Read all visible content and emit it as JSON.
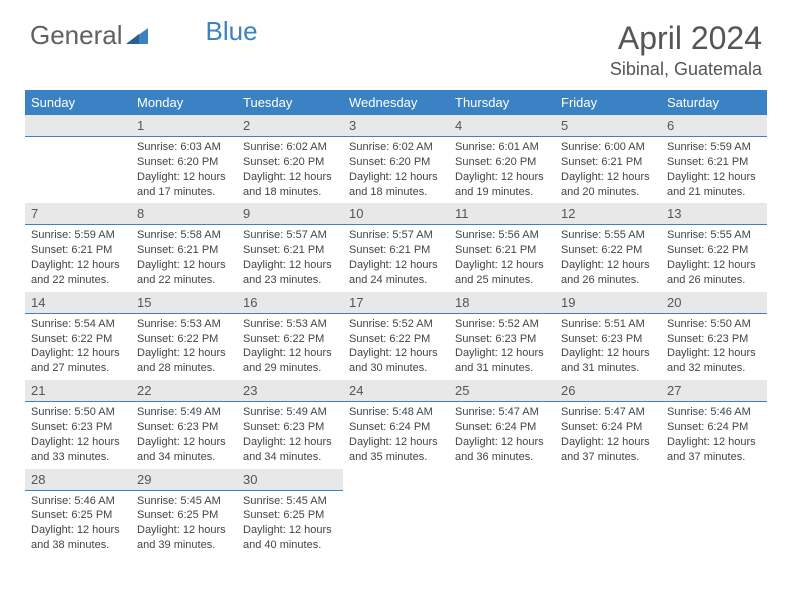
{
  "logo": {
    "part1": "General",
    "part2": "Blue"
  },
  "title": "April 2024",
  "location": "Sibinal, Guatemala",
  "colors": {
    "header_bg": "#3b82c4",
    "header_text": "#ffffff",
    "daynum_bg": "#e8e8e8",
    "daynum_border": "#3b82c4",
    "body_text": "#444444",
    "title_text": "#555555"
  },
  "weekdays": [
    "Sunday",
    "Monday",
    "Tuesday",
    "Wednesday",
    "Thursday",
    "Friday",
    "Saturday"
  ],
  "weeks": [
    [
      null,
      {
        "n": "1",
        "sr": "6:03 AM",
        "ss": "6:20 PM",
        "dl": "12 hours and 17 minutes."
      },
      {
        "n": "2",
        "sr": "6:02 AM",
        "ss": "6:20 PM",
        "dl": "12 hours and 18 minutes."
      },
      {
        "n": "3",
        "sr": "6:02 AM",
        "ss": "6:20 PM",
        "dl": "12 hours and 18 minutes."
      },
      {
        "n": "4",
        "sr": "6:01 AM",
        "ss": "6:20 PM",
        "dl": "12 hours and 19 minutes."
      },
      {
        "n": "5",
        "sr": "6:00 AM",
        "ss": "6:21 PM",
        "dl": "12 hours and 20 minutes."
      },
      {
        "n": "6",
        "sr": "5:59 AM",
        "ss": "6:21 PM",
        "dl": "12 hours and 21 minutes."
      }
    ],
    [
      {
        "n": "7",
        "sr": "5:59 AM",
        "ss": "6:21 PM",
        "dl": "12 hours and 22 minutes."
      },
      {
        "n": "8",
        "sr": "5:58 AM",
        "ss": "6:21 PM",
        "dl": "12 hours and 22 minutes."
      },
      {
        "n": "9",
        "sr": "5:57 AM",
        "ss": "6:21 PM",
        "dl": "12 hours and 23 minutes."
      },
      {
        "n": "10",
        "sr": "5:57 AM",
        "ss": "6:21 PM",
        "dl": "12 hours and 24 minutes."
      },
      {
        "n": "11",
        "sr": "5:56 AM",
        "ss": "6:21 PM",
        "dl": "12 hours and 25 minutes."
      },
      {
        "n": "12",
        "sr": "5:55 AM",
        "ss": "6:22 PM",
        "dl": "12 hours and 26 minutes."
      },
      {
        "n": "13",
        "sr": "5:55 AM",
        "ss": "6:22 PM",
        "dl": "12 hours and 26 minutes."
      }
    ],
    [
      {
        "n": "14",
        "sr": "5:54 AM",
        "ss": "6:22 PM",
        "dl": "12 hours and 27 minutes."
      },
      {
        "n": "15",
        "sr": "5:53 AM",
        "ss": "6:22 PM",
        "dl": "12 hours and 28 minutes."
      },
      {
        "n": "16",
        "sr": "5:53 AM",
        "ss": "6:22 PM",
        "dl": "12 hours and 29 minutes."
      },
      {
        "n": "17",
        "sr": "5:52 AM",
        "ss": "6:22 PM",
        "dl": "12 hours and 30 minutes."
      },
      {
        "n": "18",
        "sr": "5:52 AM",
        "ss": "6:23 PM",
        "dl": "12 hours and 31 minutes."
      },
      {
        "n": "19",
        "sr": "5:51 AM",
        "ss": "6:23 PM",
        "dl": "12 hours and 31 minutes."
      },
      {
        "n": "20",
        "sr": "5:50 AM",
        "ss": "6:23 PM",
        "dl": "12 hours and 32 minutes."
      }
    ],
    [
      {
        "n": "21",
        "sr": "5:50 AM",
        "ss": "6:23 PM",
        "dl": "12 hours and 33 minutes."
      },
      {
        "n": "22",
        "sr": "5:49 AM",
        "ss": "6:23 PM",
        "dl": "12 hours and 34 minutes."
      },
      {
        "n": "23",
        "sr": "5:49 AM",
        "ss": "6:23 PM",
        "dl": "12 hours and 34 minutes."
      },
      {
        "n": "24",
        "sr": "5:48 AM",
        "ss": "6:24 PM",
        "dl": "12 hours and 35 minutes."
      },
      {
        "n": "25",
        "sr": "5:47 AM",
        "ss": "6:24 PM",
        "dl": "12 hours and 36 minutes."
      },
      {
        "n": "26",
        "sr": "5:47 AM",
        "ss": "6:24 PM",
        "dl": "12 hours and 37 minutes."
      },
      {
        "n": "27",
        "sr": "5:46 AM",
        "ss": "6:24 PM",
        "dl": "12 hours and 37 minutes."
      }
    ],
    [
      {
        "n": "28",
        "sr": "5:46 AM",
        "ss": "6:25 PM",
        "dl": "12 hours and 38 minutes."
      },
      {
        "n": "29",
        "sr": "5:45 AM",
        "ss": "6:25 PM",
        "dl": "12 hours and 39 minutes."
      },
      {
        "n": "30",
        "sr": "5:45 AM",
        "ss": "6:25 PM",
        "dl": "12 hours and 40 minutes."
      },
      null,
      null,
      null,
      null
    ]
  ],
  "labels": {
    "sunrise": "Sunrise:",
    "sunset": "Sunset:",
    "daylight": "Daylight:"
  }
}
